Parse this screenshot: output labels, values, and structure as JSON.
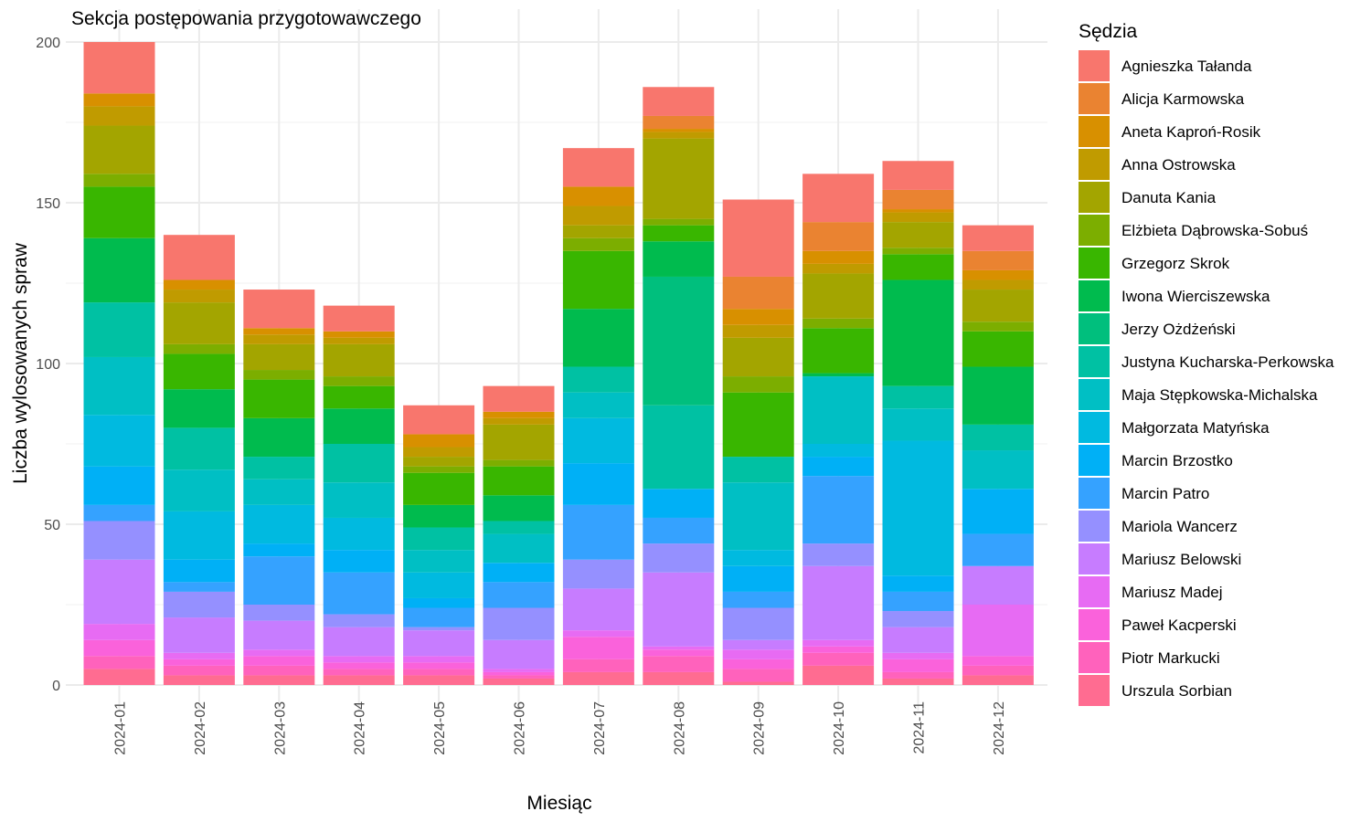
{
  "chart_data": {
    "type": "bar",
    "stacked": true,
    "title": "Sekcja postępowania przygotowawczego",
    "xlabel": "Miesiąc",
    "ylabel": "Liczba wylosowanych spraw",
    "ylim": [
      0,
      200
    ],
    "yticks": [
      0,
      50,
      100,
      150,
      200
    ],
    "grid": true,
    "legend_title": "Sędzia",
    "legend_position": "right",
    "categories": [
      "2024-01",
      "2024-02",
      "2024-03",
      "2024-04",
      "2024-05",
      "2024-06",
      "2024-07",
      "2024-08",
      "2024-09",
      "2024-10",
      "2024-11",
      "2024-12"
    ],
    "series": [
      {
        "name": "Agnieszka Tałanda",
        "color": "#F8766D",
        "values": [
          16,
          14,
          12,
          8,
          9,
          8,
          12,
          9,
          24,
          15,
          9,
          8
        ]
      },
      {
        "name": "Alicja Karmowska",
        "color": "#EA8331",
        "values": [
          0,
          0,
          0,
          0,
          0,
          0,
          0,
          4,
          10,
          9,
          6,
          6
        ]
      },
      {
        "name": "Aneta Kaproń-Rosik",
        "color": "#D89000",
        "values": [
          4,
          3,
          2,
          2,
          4,
          2,
          6,
          1,
          5,
          4,
          1,
          3
        ]
      },
      {
        "name": "Anna Ostrowska",
        "color": "#C09B00",
        "values": [
          6,
          4,
          3,
          2,
          3,
          2,
          6,
          2,
          4,
          3,
          3,
          3
        ]
      },
      {
        "name": "Danuta Kania",
        "color": "#A3A500",
        "values": [
          15,
          13,
          8,
          10,
          3,
          11,
          4,
          25,
          12,
          14,
          8,
          10
        ]
      },
      {
        "name": "Elżbieta Dąbrowska-Sobuś",
        "color": "#7CAE00",
        "values": [
          4,
          3,
          3,
          3,
          2,
          2,
          4,
          2,
          5,
          3,
          2,
          3
        ]
      },
      {
        "name": "Grzegorz Skrok",
        "color": "#39B600",
        "values": [
          16,
          11,
          12,
          7,
          10,
          9,
          18,
          5,
          20,
          14,
          8,
          11
        ]
      },
      {
        "name": "Iwona Wierciszewska",
        "color": "#00BB4E",
        "values": [
          20,
          12,
          12,
          11,
          7,
          8,
          18,
          11,
          0,
          1,
          33,
          18
        ]
      },
      {
        "name": "Jerzy Ożdżeński",
        "color": "#00BF7D",
        "values": [
          0,
          0,
          0,
          0,
          0,
          0,
          0,
          40,
          0,
          0,
          0,
          0
        ]
      },
      {
        "name": "Justyna Kucharska-Perkowska",
        "color": "#00C1A3",
        "values": [
          17,
          13,
          7,
          12,
          7,
          4,
          8,
          26,
          8,
          0,
          7,
          8
        ]
      },
      {
        "name": "Maja Stępkowska-Michalska",
        "color": "#00BFC4",
        "values": [
          18,
          13,
          8,
          11,
          7,
          9,
          8,
          0,
          21,
          21,
          10,
          12
        ]
      },
      {
        "name": "Małgorzata Matyńska",
        "color": "#00BAE0",
        "values": [
          16,
          15,
          12,
          10,
          8,
          0,
          14,
          0,
          5,
          4,
          42,
          0
        ]
      },
      {
        "name": "Marcin Brzostko",
        "color": "#00B0F6",
        "values": [
          12,
          7,
          4,
          7,
          3,
          6,
          13,
          9,
          8,
          6,
          5,
          14
        ]
      },
      {
        "name": "Marcin Patro",
        "color": "#35A2FF",
        "values": [
          5,
          3,
          15,
          13,
          6,
          8,
          17,
          8,
          5,
          21,
          6,
          10
        ]
      },
      {
        "name": "Mariola Wancerz",
        "color": "#9590FF",
        "values": [
          12,
          8,
          5,
          4,
          1,
          10,
          9,
          9,
          10,
          7,
          5,
          0
        ]
      },
      {
        "name": "Mariusz Belowski",
        "color": "#C77CFF",
        "values": [
          20,
          11,
          9,
          9,
          8,
          9,
          13,
          23,
          3,
          23,
          8,
          12
        ]
      },
      {
        "name": "Mariusz Madej",
        "color": "#E76BF3",
        "values": [
          5,
          2,
          2,
          2,
          2,
          1,
          2,
          1,
          3,
          2,
          2,
          16
        ]
      },
      {
        "name": "Paweł Kacperski",
        "color": "#FA62DB",
        "values": [
          5,
          2,
          3,
          2,
          2,
          1,
          7,
          2,
          3,
          2,
          4,
          3
        ]
      },
      {
        "name": "Piotr Markucki",
        "color": "#FF62BC",
        "values": [
          4,
          3,
          3,
          2,
          2,
          1,
          4,
          5,
          4,
          4,
          2,
          3
        ]
      },
      {
        "name": "Urszula Sorbian",
        "color": "#FF6C91",
        "values": [
          5,
          3,
          3,
          3,
          3,
          2,
          4,
          4,
          1,
          6,
          2,
          3
        ]
      }
    ]
  }
}
